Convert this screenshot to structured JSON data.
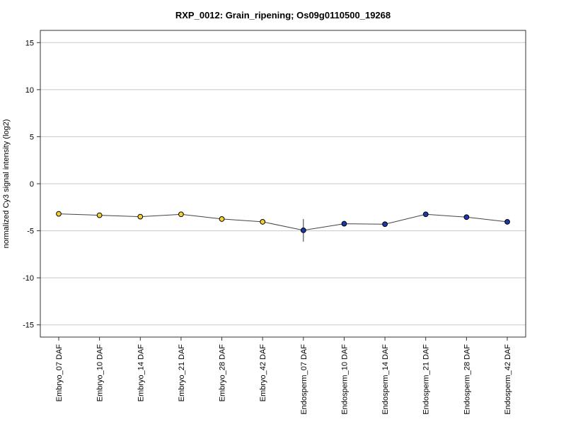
{
  "chart_data": {
    "type": "line",
    "title": "RXP_0012: Grain_ripening; Os09g0110500_19268",
    "xlabel": "",
    "ylabel": "normalized Cy3 signal intensity (log2)",
    "ylim": [
      -16.3,
      16.3
    ],
    "yticks": [
      15,
      10,
      5,
      0,
      -5,
      -10,
      -15
    ],
    "grid": true,
    "categories": [
      "Embryo_07 DAF",
      "Embryo_10 DAF",
      "Embryo_14 DAF",
      "Embryo_21 DAF",
      "Embryo_28 DAF",
      "Embryo_42 DAF",
      "Endosperm_07 DAF",
      "Endosperm_10 DAF",
      "Endosperm_14 DAF",
      "Endosperm_21 DAF",
      "Endosperm_28 DAF",
      "Endosperm_42 DAF"
    ],
    "values": [
      -3.2,
      -3.35,
      -3.5,
      -3.25,
      -3.75,
      -4.05,
      -4.95,
      -4.25,
      -4.3,
      -3.25,
      -3.55,
      -4.05
    ],
    "errors": [
      0.15,
      0.1,
      0.1,
      0.1,
      0.2,
      0.1,
      1.2,
      0.05,
      0.05,
      0.05,
      0.1,
      0.1
    ],
    "point_colors": [
      "#f5d033",
      "#f5d033",
      "#f5d033",
      "#f5d033",
      "#f5d033",
      "#f5d033",
      "#1a3aa8",
      "#1a3aa8",
      "#1a3aa8",
      "#1a3aa8",
      "#1a3aa8",
      "#1a3aa8"
    ],
    "colors": {
      "line": "#444444",
      "embryo": "#f5d033",
      "endosperm": "#1a3aa8",
      "grid": "#c8c8c8"
    }
  }
}
